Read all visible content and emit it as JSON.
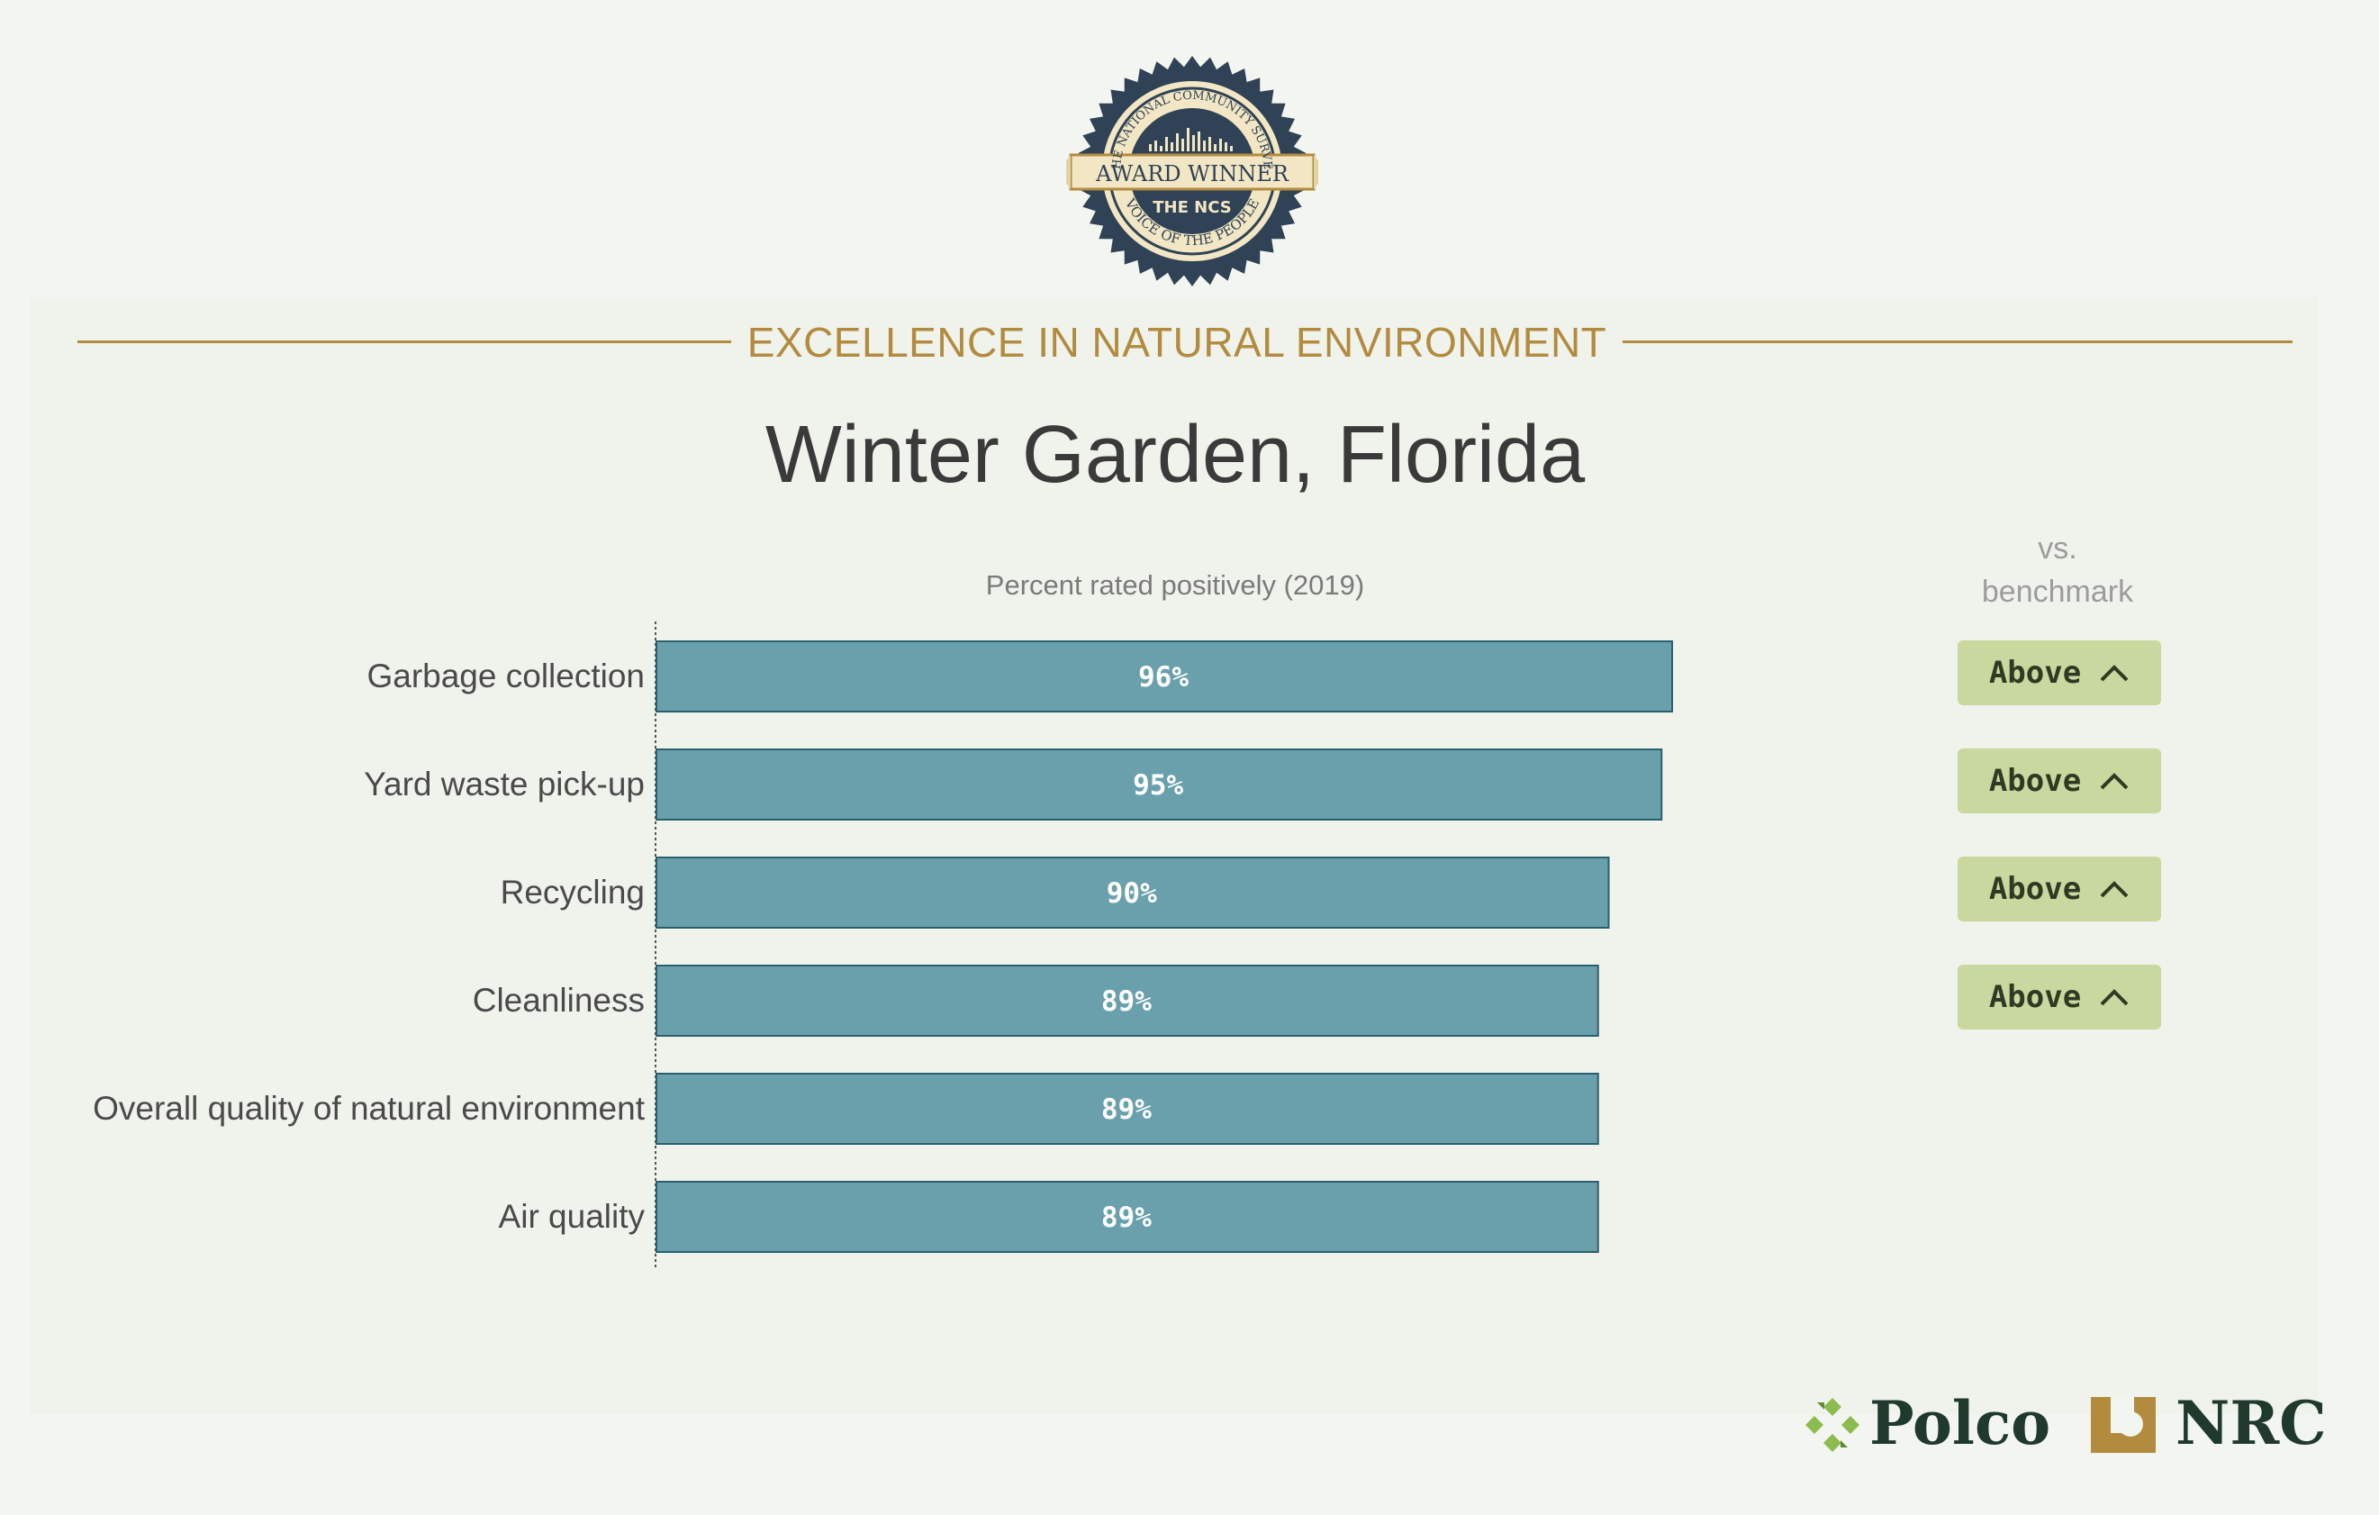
{
  "badge": {
    "ring_text_top": "THE NATIONAL COMMUNITY SURVEY",
    "ribbon": "AWARD WINNER",
    "mark": "THE NCS",
    "ring_text_bottom": "VOICE OF THE PEOPLE"
  },
  "section_title": "EXCELLENCE IN NATURAL ENVIRONMENT",
  "city": "Winter Garden, Florida",
  "chart_subtitle": "Percent rated positively (2019)",
  "benchmark_header": [
    "vs.",
    "benchmark"
  ],
  "chart_data": {
    "type": "bar",
    "orientation": "horizontal",
    "title": "Percent rated positively (2019)",
    "categories": [
      "Garbage collection",
      "Yard waste pick-up",
      "Recycling",
      "Cleanliness",
      "Overall quality of natural environment",
      "Air quality"
    ],
    "values": [
      96,
      95,
      90,
      89,
      89,
      89
    ],
    "value_labels": [
      "96%",
      "95%",
      "90%",
      "89%",
      "89%",
      "89%"
    ],
    "xlim": [
      0,
      100
    ],
    "bar_color": "#6aa0ab",
    "bar_border": "#2a5f6e",
    "benchmark": [
      "Above",
      "Above",
      "Above",
      "Above",
      "",
      ""
    ]
  },
  "colors": {
    "accent_gold": "#b28b3f",
    "bar": "#6aa0ab",
    "benchmark_bg": "#c9d89e",
    "text_dark": "#3a3a3a",
    "logo_green": "#1f3a2c"
  },
  "footer": {
    "logo1": "Polco",
    "logo2": "NRC"
  },
  "icons": {
    "benchmark_chevron": "chevron-up-icon",
    "polco_mark": "polco-logo-icon",
    "nrc_mark": "nrc-logo-icon"
  }
}
